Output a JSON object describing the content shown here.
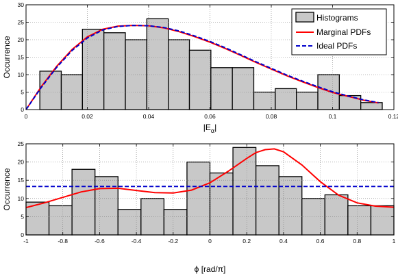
{
  "chart_data": [
    {
      "type": "bar",
      "ylabel": "Occurrence",
      "xlabel_parts": [
        "|E",
        "α",
        "|"
      ],
      "xlim": [
        0,
        0.12
      ],
      "ylim": [
        0,
        30
      ],
      "xticks": [
        0,
        0.02,
        0.04,
        0.06,
        0.08,
        0.1,
        0.12
      ],
      "xtick_labels": [
        "0",
        "0.02",
        "0.04",
        "0.06",
        "0.08",
        "0.1",
        "0.12"
      ],
      "yticks": [
        0,
        5,
        10,
        15,
        20,
        25,
        30
      ],
      "ytick_labels": [
        "0",
        "5",
        "10",
        "15",
        "20",
        "25",
        "30"
      ],
      "grid": true,
      "legend_position": "top-right",
      "legend": [
        "Histograms",
        "Marginal PDFs",
        "Ideal PDFs"
      ],
      "bins": {
        "edges": [
          0.0045,
          0.0115,
          0.0184,
          0.0254,
          0.0324,
          0.0394,
          0.0464,
          0.0533,
          0.0603,
          0.0673,
          0.0743,
          0.0813,
          0.0882,
          0.0952,
          0.1022,
          0.1092,
          0.1162
        ],
        "counts": [
          11,
          10,
          23,
          22,
          20,
          26,
          20,
          17,
          12,
          12,
          5,
          6,
          5,
          10,
          4,
          2
        ]
      },
      "series": [
        {
          "name": "Marginal PDFs",
          "color": "#ff0000",
          "style": "solid",
          "x": [
            0,
            0.005,
            0.01,
            0.015,
            0.02,
            0.025,
            0.03,
            0.035,
            0.04,
            0.045,
            0.05,
            0.055,
            0.06,
            0.065,
            0.07,
            0.075,
            0.08,
            0.085,
            0.09,
            0.095,
            0.1,
            0.105,
            0.11,
            0.115
          ],
          "y": [
            0,
            6.6,
            12.4,
            17.2,
            20.8,
            23.0,
            23.9,
            24.1,
            24.0,
            23.4,
            22.3,
            20.9,
            19.3,
            17.5,
            15.5,
            13.5,
            11.6,
            9.7,
            8.0,
            6.4,
            4.9,
            3.8,
            2.7,
            1.9
          ]
        },
        {
          "name": "Ideal PDFs",
          "color": "#0000cc",
          "style": "dashed",
          "x": [
            0,
            0.005,
            0.01,
            0.015,
            0.02,
            0.025,
            0.03,
            0.035,
            0.04,
            0.045,
            0.05,
            0.055,
            0.06,
            0.065,
            0.07,
            0.075,
            0.08,
            0.085,
            0.09,
            0.095,
            0.1,
            0.105,
            0.11,
            0.115
          ],
          "y": [
            0,
            6.4,
            12.1,
            16.9,
            20.5,
            22.8,
            23.8,
            24.1,
            24.0,
            23.5,
            22.5,
            21.1,
            19.5,
            17.7,
            15.7,
            13.7,
            11.8,
            9.9,
            8.2,
            6.6,
            5.1,
            3.9,
            2.8,
            2.0
          ]
        }
      ]
    },
    {
      "type": "bar",
      "ylabel": "Occurrence",
      "xlabel": "ϕ  [rad/π]",
      "xlim": [
        -1,
        1
      ],
      "ylim": [
        0,
        25
      ],
      "xticks": [
        -1,
        -0.8,
        -0.6,
        -0.4,
        -0.2,
        0,
        0.2,
        0.4,
        0.6,
        0.8,
        1
      ],
      "xtick_labels": [
        "-1",
        "-0.8",
        "-0.6",
        "-0.4",
        "-0.2",
        "0",
        "0.2",
        "0.4",
        "0.6",
        "0.8",
        "1"
      ],
      "yticks": [
        0,
        5,
        10,
        15,
        20,
        25
      ],
      "ytick_labels": [
        "0",
        "5",
        "10",
        "15",
        "20",
        "25"
      ],
      "grid": true,
      "bins": {
        "edges": [
          -1,
          -0.875,
          -0.75,
          -0.625,
          -0.5,
          -0.375,
          -0.25,
          -0.125,
          0,
          0.125,
          0.25,
          0.375,
          0.5,
          0.625,
          0.75,
          0.875,
          1
        ],
        "counts": [
          9,
          8,
          18,
          16,
          7,
          10,
          7,
          20,
          17,
          24,
          19,
          16,
          10,
          11,
          8,
          8
        ]
      },
      "series": [
        {
          "name": "Marginal PDFs",
          "color": "#ff0000",
          "style": "solid",
          "x": [
            -1,
            -0.9,
            -0.8,
            -0.7,
            -0.6,
            -0.5,
            -0.4,
            -0.3,
            -0.2,
            -0.1,
            0,
            0.1,
            0.2,
            0.25,
            0.3,
            0.35,
            0.4,
            0.5,
            0.6,
            0.7,
            0.8,
            0.9,
            1
          ],
          "y": [
            7.5,
            8.8,
            10.3,
            11.8,
            12.7,
            12.8,
            12.2,
            11.6,
            11.5,
            12.3,
            14.3,
            17.5,
            21.0,
            22.6,
            23.4,
            23.6,
            22.8,
            19.2,
            14.6,
            10.9,
            8.8,
            7.9,
            7.6
          ]
        },
        {
          "name": "Ideal PDFs",
          "color": "#0000cc",
          "style": "dashed",
          "x": [
            -1,
            1
          ],
          "y": [
            13.3,
            13.3
          ]
        }
      ]
    }
  ]
}
